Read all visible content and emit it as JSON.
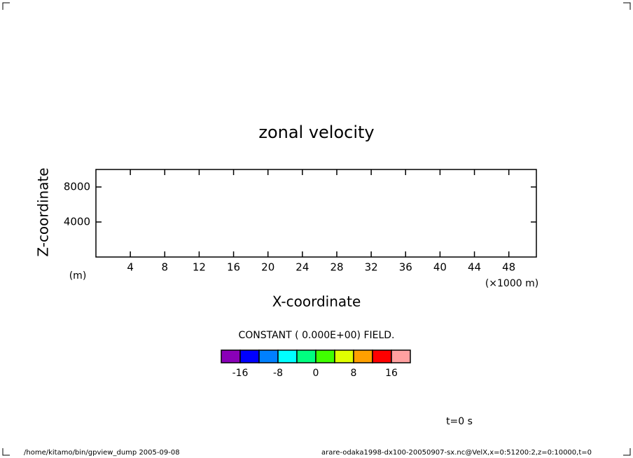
{
  "chart_data": {
    "type": "contour",
    "title": "zonal velocity",
    "x_label": "X-coordinate",
    "y_label": "Z-coordinate",
    "x_unit": "(×1000 m)",
    "y_unit": "(m)",
    "note": "CONSTANT ( 0.000E+00) FIELD.",
    "xlim": [
      0,
      51.2
    ],
    "xticks": [
      4,
      8,
      12,
      16,
      20,
      24,
      28,
      32,
      36,
      40,
      44,
      48
    ],
    "ylim": [
      0,
      10000
    ],
    "yticks": [
      4000,
      8000
    ],
    "colorbar": {
      "levels": [
        -20,
        -16,
        -12,
        -8,
        -4,
        0,
        4,
        8,
        12,
        16,
        20
      ],
      "colors": [
        "#8a00b8",
        "#0000ff",
        "#0080ff",
        "#00ffff",
        "#00ff80",
        "#40ff00",
        "#e0ff00",
        "#ffa000",
        "#ff0000",
        "#ffa0a0"
      ],
      "ticks": [
        -16,
        -8,
        0,
        8,
        16
      ]
    },
    "time_label": "t=0 s",
    "footer_left": "/home/kitamo/bin/gpview_dump  2005-09-08",
    "footer_right": "arare-odaka1998-dx100-20050907-sx.nc@VelX,x=0:51200:2,z=0:10000,t=0"
  }
}
